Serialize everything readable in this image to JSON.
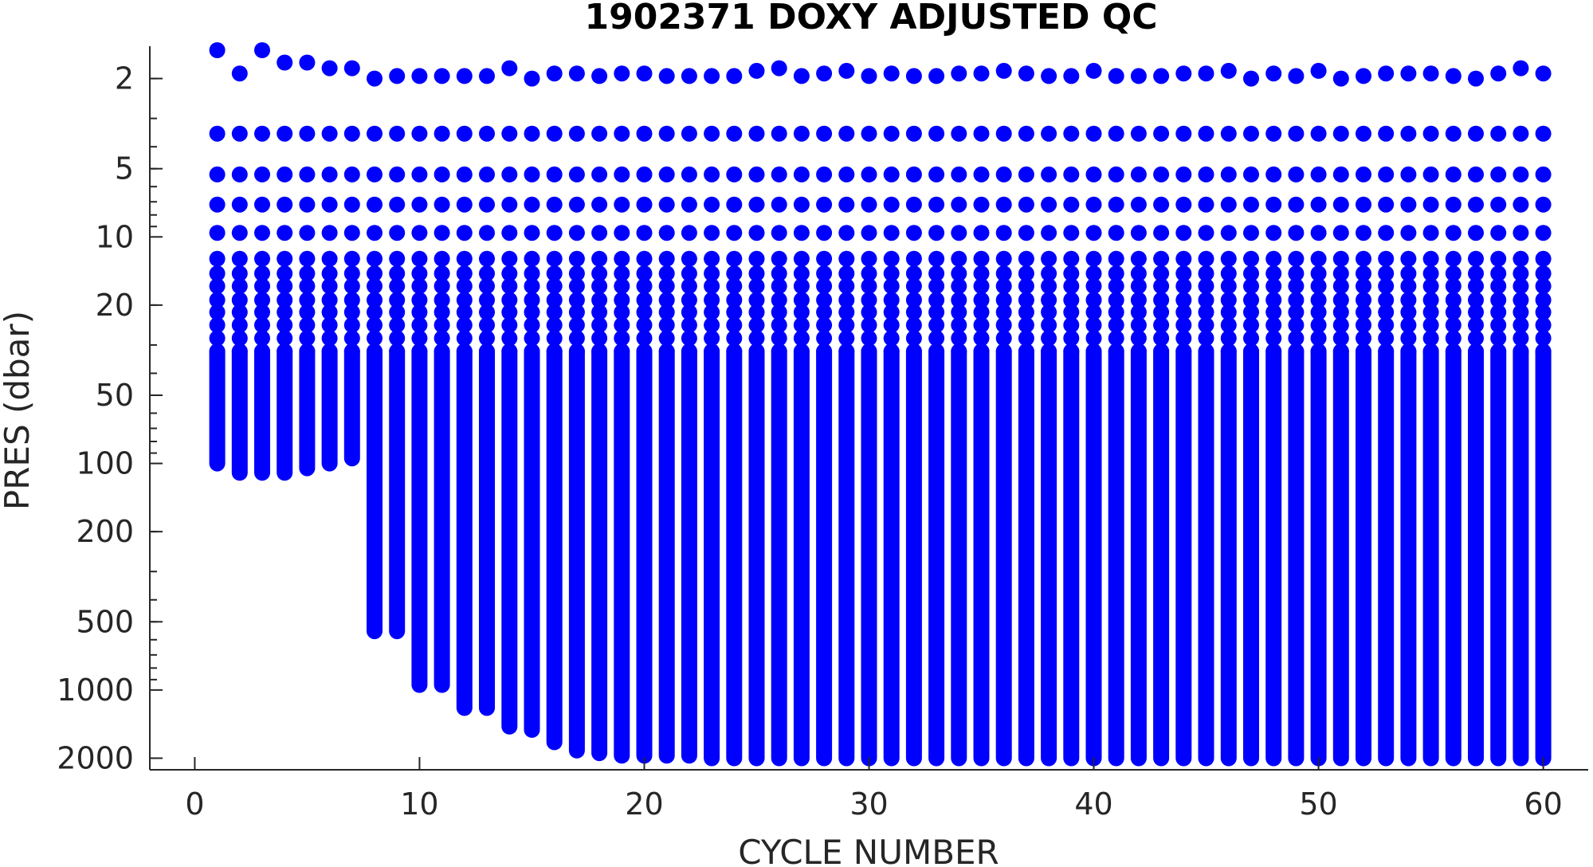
{
  "chart_data": {
    "type": "scatter",
    "title": "1902371  DOXY ADJUSTED QC",
    "xlabel": "CYCLE NUMBER",
    "ylabel": "PRES (dbar)",
    "xlim": [
      -2,
      62
    ],
    "ylim": [
      1.44,
      2250
    ],
    "y_scale": "log",
    "y_reversed": true,
    "x_ticks": [
      0,
      10,
      20,
      30,
      40,
      50,
      60
    ],
    "x_tick_labels": [
      "0",
      "10",
      "20",
      "30",
      "40",
      "50",
      "60"
    ],
    "y_ticks": [
      2,
      5,
      10,
      20,
      50,
      100,
      200,
      500,
      1000,
      2000
    ],
    "y_tick_labels": [
      "2",
      "5",
      "10",
      "20",
      "50",
      "100",
      "200",
      "500",
      "1000",
      "2000"
    ],
    "grid": false,
    "marker_color": "#0000ff",
    "series": [
      {
        "cycles": [
          1,
          2,
          3,
          4,
          5,
          6,
          7,
          8,
          9,
          10,
          11,
          12,
          13,
          14,
          15,
          16,
          17,
          18,
          19,
          20,
          21,
          22,
          23,
          24,
          25,
          26,
          27,
          28,
          29,
          30,
          31,
          32,
          33,
          34,
          35,
          36,
          37,
          38,
          39,
          40,
          41,
          42,
          43,
          44,
          45,
          46,
          47,
          48,
          49,
          50,
          51,
          52,
          53,
          54,
          55,
          56,
          57,
          58,
          59,
          60
        ],
        "surface_pres": [
          1.5,
          1.9,
          1.5,
          1.7,
          1.7,
          1.8,
          1.8,
          2.0,
          1.95,
          1.95,
          1.95,
          1.95,
          1.95,
          1.8,
          2.0,
          1.9,
          1.9,
          1.95,
          1.9,
          1.9,
          1.95,
          1.95,
          1.95,
          1.95,
          1.85,
          1.8,
          1.95,
          1.9,
          1.85,
          1.95,
          1.9,
          1.95,
          1.95,
          1.9,
          1.9,
          1.85,
          1.9,
          1.95,
          1.95,
          1.85,
          1.95,
          1.95,
          1.95,
          1.9,
          1.9,
          1.85,
          2.0,
          1.9,
          1.95,
          1.85,
          2.0,
          1.95,
          1.9,
          1.9,
          1.9,
          1.95,
          2.0,
          1.9,
          1.8,
          1.9
        ],
        "max_pres": [
          100,
          110,
          110,
          110,
          105,
          100,
          95,
          550,
          550,
          950,
          950,
          1200,
          1200,
          1450,
          1500,
          1700,
          1850,
          1900,
          1950,
          1950,
          1950,
          1950,
          2000,
          2000,
          2000,
          2000,
          2000,
          2000,
          2000,
          2000,
          2000,
          2000,
          2000,
          2000,
          2000,
          2000,
          2000,
          2000,
          2000,
          2000,
          2000,
          2000,
          2000,
          2000,
          2000,
          2000,
          2000,
          2000,
          2000,
          2000,
          2000,
          2000,
          2000,
          2000,
          2000,
          2000,
          2000,
          2000,
          2000,
          2000
        ],
        "profile_levels": [
          3.5,
          5.3,
          7.2,
          9.6,
          12.5,
          14.5,
          16.5,
          19,
          21.5,
          24.5,
          28,
          32
        ]
      }
    ]
  }
}
